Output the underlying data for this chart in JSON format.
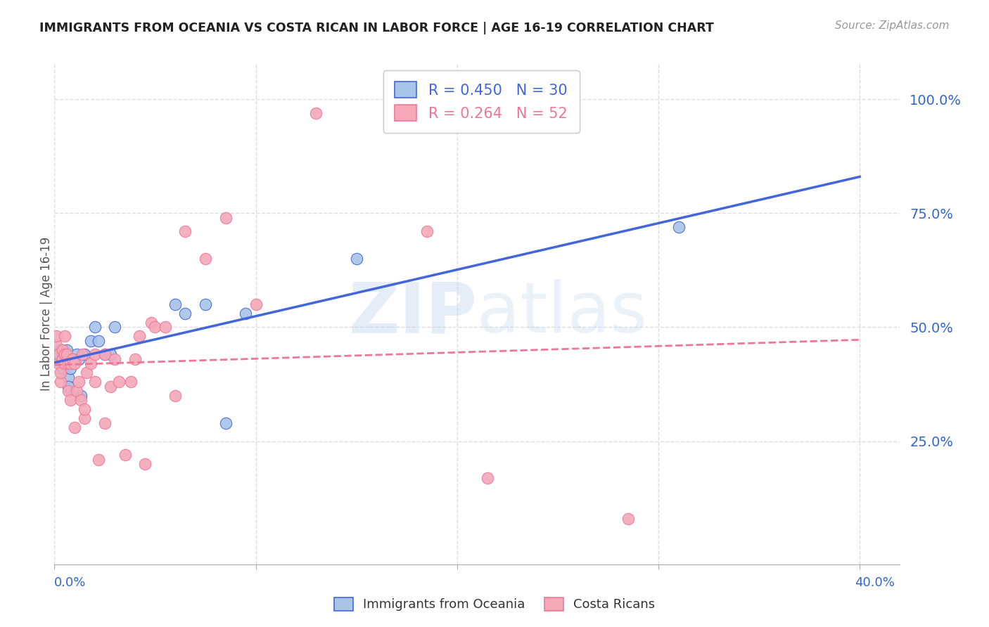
{
  "title": "IMMIGRANTS FROM OCEANIA VS COSTA RICAN IN LABOR FORCE | AGE 16-19 CORRELATION CHART",
  "source": "Source: ZipAtlas.com",
  "ylabel": "In Labor Force | Age 16-19",
  "ytick_labels": [
    "100.0%",
    "75.0%",
    "50.0%",
    "25.0%"
  ],
  "ytick_values": [
    1.0,
    0.75,
    0.5,
    0.25
  ],
  "xlim": [
    0.0,
    0.42
  ],
  "ylim": [
    -0.02,
    1.08
  ],
  "blue_R": 0.45,
  "blue_N": 30,
  "pink_R": 0.264,
  "pink_N": 52,
  "blue_color": "#A8C4E8",
  "pink_color": "#F4A8B8",
  "line_blue": "#4466DD",
  "line_pink": "#EE7799",
  "legend_label_blue": "Immigrants from Oceania",
  "legend_label_pink": "Costa Ricans",
  "blue_x": [
    0.003,
    0.003,
    0.004,
    0.004,
    0.005,
    0.005,
    0.006,
    0.006,
    0.007,
    0.007,
    0.008,
    0.009,
    0.01,
    0.011,
    0.012,
    0.013,
    0.015,
    0.018,
    0.02,
    0.022,
    0.025,
    0.028,
    0.03,
    0.06,
    0.065,
    0.075,
    0.085,
    0.095,
    0.15,
    0.31
  ],
  "blue_y": [
    0.43,
    0.45,
    0.41,
    0.44,
    0.42,
    0.44,
    0.43,
    0.45,
    0.39,
    0.37,
    0.41,
    0.43,
    0.43,
    0.44,
    0.43,
    0.35,
    0.44,
    0.47,
    0.5,
    0.47,
    0.44,
    0.44,
    0.5,
    0.55,
    0.53,
    0.55,
    0.29,
    0.53,
    0.65,
    0.72
  ],
  "pink_x": [
    0.001,
    0.001,
    0.002,
    0.002,
    0.003,
    0.003,
    0.004,
    0.004,
    0.005,
    0.005,
    0.005,
    0.006,
    0.007,
    0.007,
    0.008,
    0.008,
    0.009,
    0.01,
    0.01,
    0.011,
    0.012,
    0.013,
    0.014,
    0.015,
    0.015,
    0.016,
    0.018,
    0.02,
    0.02,
    0.022,
    0.025,
    0.025,
    0.028,
    0.03,
    0.032,
    0.035,
    0.038,
    0.04,
    0.042,
    0.045,
    0.048,
    0.05,
    0.055,
    0.06,
    0.065,
    0.075,
    0.085,
    0.1,
    0.13,
    0.185,
    0.215,
    0.285
  ],
  "pink_y": [
    0.46,
    0.48,
    0.42,
    0.44,
    0.38,
    0.4,
    0.43,
    0.45,
    0.42,
    0.44,
    0.48,
    0.44,
    0.36,
    0.42,
    0.34,
    0.42,
    0.43,
    0.28,
    0.42,
    0.36,
    0.38,
    0.34,
    0.44,
    0.3,
    0.32,
    0.4,
    0.42,
    0.38,
    0.44,
    0.21,
    0.29,
    0.44,
    0.37,
    0.43,
    0.38,
    0.22,
    0.38,
    0.43,
    0.48,
    0.2,
    0.51,
    0.5,
    0.5,
    0.35,
    0.71,
    0.65,
    0.74,
    0.55,
    0.97,
    0.71,
    0.17,
    0.08
  ],
  "grid_color": "#DDDDDD",
  "bg_color": "#FFFFFF",
  "title_color": "#222222",
  "right_yaxis_color": "#3366CC"
}
